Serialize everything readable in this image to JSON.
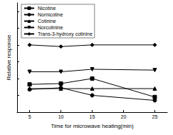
{
  "chart_data": {
    "type": "line",
    "x_label": "Time for microwave heating(min)",
    "y_label": "Relative response",
    "xlim": [
      3,
      27
    ],
    "xticks": [
      5,
      10,
      15,
      20,
      25
    ],
    "ylim": [
      0.2,
      1.5
    ],
    "yticks": [
      0.2,
      0.4,
      0.6,
      0.8,
      1.0,
      1.2,
      1.4
    ],
    "tick_labels": "x",
    "legend": "upper left",
    "series": [
      {
        "name": "Nicotine",
        "color": "#000000",
        "marker": "square",
        "x": [
          5,
          10,
          15,
          25
        ],
        "values": [
          0.53,
          0.54,
          0.6,
          0.38
        ]
      },
      {
        "name": "Nornicotine",
        "color": "#000000",
        "marker": "circle",
        "x": [
          5,
          10,
          15,
          25
        ],
        "values": [
          0.47,
          0.49,
          0.4,
          0.34
        ]
      },
      {
        "name": "Cotinine",
        "color": "#000000",
        "marker": "triangle",
        "x": [
          5,
          10,
          15,
          25
        ],
        "values": [
          0.48,
          0.48,
          0.48,
          0.48
        ]
      },
      {
        "name": "Norcotinine",
        "color": "#000000",
        "marker": "triangle_down",
        "x": [
          5,
          10,
          15,
          25
        ],
        "values": [
          0.68,
          0.68,
          0.71,
          0.7
        ]
      },
      {
        "name": "Trans-3-hydroxy cotinine",
        "color": "#000000",
        "marker": "diamond",
        "x": [
          5,
          10,
          15,
          25
        ],
        "values": [
          1.0,
          0.98,
          1.0,
          1.0
        ]
      }
    ]
  }
}
